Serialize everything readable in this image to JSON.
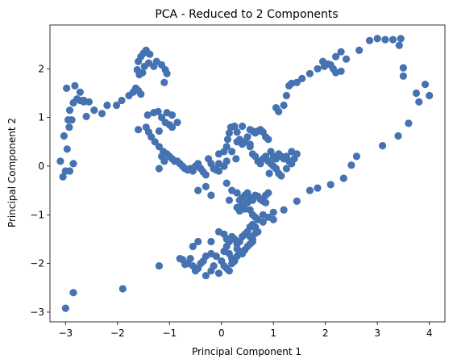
{
  "chart_data": {
    "type": "scatter",
    "title": "PCA - Reduced to 2 Components",
    "xlabel": "Principal Component 1",
    "ylabel": "Principal Component 2",
    "xlim": [
      -3.3,
      4.3
    ],
    "ylim": [
      -3.2,
      2.9
    ],
    "xticks": [
      -3,
      -2,
      -1,
      0,
      1,
      2,
      3,
      4
    ],
    "yticks": [
      -3,
      -2,
      -1,
      0,
      1,
      2
    ],
    "grid": false,
    "marker_color": "#4572b0",
    "points": [
      [
        -3.0,
        -2.92
      ],
      [
        -2.85,
        -2.6
      ],
      [
        -1.9,
        -2.52
      ],
      [
        -1.2,
        -2.05
      ],
      [
        -3.1,
        0.1
      ],
      [
        -3.05,
        -0.22
      ],
      [
        -3.0,
        -0.1
      ],
      [
        -2.92,
        -0.1
      ],
      [
        -2.85,
        0.05
      ],
      [
        -2.97,
        0.35
      ],
      [
        -3.03,
        0.62
      ],
      [
        -2.93,
        0.8
      ],
      [
        -2.88,
        0.95
      ],
      [
        -2.95,
        0.95
      ],
      [
        -2.92,
        1.15
      ],
      [
        -2.85,
        1.3
      ],
      [
        -2.78,
        1.38
      ],
      [
        -2.72,
        1.35
      ],
      [
        -2.65,
        1.32
      ],
      [
        -2.55,
        1.32
      ],
      [
        -2.6,
        1.02
      ],
      [
        -2.45,
        1.15
      ],
      [
        -2.3,
        1.08
      ],
      [
        -2.2,
        1.25
      ],
      [
        -2.02,
        1.25
      ],
      [
        -1.92,
        1.35
      ],
      [
        -1.78,
        1.45
      ],
      [
        -1.7,
        1.52
      ],
      [
        -1.65,
        1.6
      ],
      [
        -1.6,
        1.55
      ],
      [
        -1.55,
        1.48
      ],
      [
        -1.58,
        1.88
      ],
      [
        -1.62,
        1.98
      ],
      [
        -1.6,
        2.15
      ],
      [
        -1.55,
        2.25
      ],
      [
        -1.5,
        2.32
      ],
      [
        -1.45,
        2.38
      ],
      [
        -1.38,
        2.3
      ],
      [
        -1.4,
        2.12
      ],
      [
        -1.48,
        2.05
      ],
      [
        -1.52,
        1.92
      ],
      [
        -1.3,
        2.05
      ],
      [
        -1.25,
        2.15
      ],
      [
        -1.15,
        2.08
      ],
      [
        -1.08,
        1.98
      ],
      [
        -1.05,
        1.9
      ],
      [
        -1.1,
        1.72
      ],
      [
        -2.98,
        1.6
      ],
      [
        -2.82,
        1.65
      ],
      [
        -2.72,
        1.52
      ],
      [
        -2.65,
        1.35
      ],
      [
        -1.6,
        0.75
      ],
      [
        -1.45,
        0.8
      ],
      [
        -1.4,
        0.7
      ],
      [
        -1.35,
        0.6
      ],
      [
        -1.28,
        0.5
      ],
      [
        -1.2,
        0.4
      ],
      [
        -1.12,
        0.3
      ],
      [
        -1.05,
        0.25
      ],
      [
        -1.15,
        0.2
      ],
      [
        -1.1,
        0.1
      ],
      [
        -1.2,
        -0.05
      ],
      [
        -1.0,
        0.2
      ],
      [
        -0.95,
        0.15
      ],
      [
        -0.9,
        0.1
      ],
      [
        -0.85,
        0.1
      ],
      [
        -0.8,
        0.05
      ],
      [
        -0.75,
        0.0
      ],
      [
        -0.7,
        -0.05
      ],
      [
        -0.65,
        -0.08
      ],
      [
        -0.6,
        -0.05
      ],
      [
        -0.55,
        -0.1
      ],
      [
        -0.5,
        0.0
      ],
      [
        -0.45,
        0.05
      ],
      [
        -0.4,
        -0.05
      ],
      [
        -0.35,
        -0.12
      ],
      [
        -0.3,
        -0.18
      ],
      [
        -0.25,
        0.15
      ],
      [
        -0.2,
        0.05
      ],
      [
        -0.15,
        -0.05
      ],
      [
        -0.1,
        -0.08
      ],
      [
        -0.05,
        0.05
      ],
      [
        -0.45,
        -0.5
      ],
      [
        -0.3,
        -0.42
      ],
      [
        -0.2,
        -0.6
      ],
      [
        -1.42,
        1.05
      ],
      [
        -1.3,
        1.1
      ],
      [
        -1.22,
        1.12
      ],
      [
        -1.15,
        1.0
      ],
      [
        -1.08,
        0.9
      ],
      [
        -1.0,
        0.85
      ],
      [
        -0.95,
        0.8
      ],
      [
        -1.2,
        0.72
      ],
      [
        -1.05,
        1.1
      ],
      [
        -0.95,
        1.05
      ],
      [
        -0.85,
        0.9
      ],
      [
        -0.05,
        0.25
      ],
      [
        0.05,
        0.3
      ],
      [
        0.1,
        0.4
      ],
      [
        0.12,
        0.55
      ],
      [
        0.15,
        0.68
      ],
      [
        0.18,
        0.8
      ],
      [
        0.25,
        0.82
      ],
      [
        0.3,
        0.7
      ],
      [
        0.35,
        0.55
      ],
      [
        0.4,
        0.45
      ],
      [
        0.45,
        0.5
      ],
      [
        0.5,
        0.6
      ],
      [
        0.55,
        0.75
      ],
      [
        0.6,
        0.72
      ],
      [
        0.65,
        0.68
      ],
      [
        0.7,
        0.72
      ],
      [
        0.75,
        0.75
      ],
      [
        0.8,
        0.7
      ],
      [
        0.85,
        0.6
      ],
      [
        0.9,
        0.55
      ],
      [
        0.4,
        0.82
      ],
      [
        0.55,
        0.4
      ],
      [
        0.6,
        0.25
      ],
      [
        0.65,
        0.2
      ],
      [
        0.7,
        0.1
      ],
      [
        0.75,
        0.05
      ],
      [
        0.8,
        0.15
      ],
      [
        0.85,
        0.2
      ],
      [
        0.9,
        0.1
      ],
      [
        0.95,
        0.05
      ],
      [
        1.0,
        0.0
      ],
      [
        1.05,
        -0.05
      ],
      [
        1.1,
        -0.15
      ],
      [
        1.15,
        -0.2
      ],
      [
        1.0,
        0.2
      ],
      [
        1.05,
        0.15
      ],
      [
        1.1,
        0.25
      ],
      [
        1.15,
        0.2
      ],
      [
        1.2,
        0.15
      ],
      [
        1.25,
        0.2
      ],
      [
        1.3,
        0.1
      ],
      [
        1.35,
        0.05
      ],
      [
        1.4,
        0.15
      ],
      [
        1.45,
        0.25
      ],
      [
        1.35,
        0.3
      ],
      [
        1.25,
        -0.05
      ],
      [
        0.55,
        0.45
      ],
      [
        0.3,
        0.5
      ],
      [
        0.2,
        0.3
      ],
      [
        0.28,
        0.15
      ],
      [
        0.05,
        0.0
      ],
      [
        0.1,
        0.1
      ],
      [
        -0.05,
        -0.1
      ],
      [
        0.95,
        0.3
      ],
      [
        0.92,
        -0.15
      ],
      [
        0.2,
        -0.5
      ],
      [
        0.3,
        -0.55
      ],
      [
        0.35,
        -0.7
      ],
      [
        0.4,
        -0.65
      ],
      [
        0.45,
        -0.6
      ],
      [
        0.5,
        -0.55
      ],
      [
        0.55,
        -0.65
      ],
      [
        0.6,
        -0.7
      ],
      [
        0.65,
        -0.6
      ],
      [
        0.7,
        -0.62
      ],
      [
        0.75,
        -0.68
      ],
      [
        0.8,
        -0.72
      ],
      [
        0.85,
        -0.6
      ],
      [
        0.9,
        -0.55
      ],
      [
        0.3,
        -0.85
      ],
      [
        0.35,
        -0.92
      ],
      [
        0.4,
        -0.8
      ],
      [
        0.45,
        -0.88
      ],
      [
        0.5,
        -0.75
      ],
      [
        0.55,
        -0.9
      ],
      [
        0.6,
        -1.0
      ],
      [
        0.65,
        -1.05
      ],
      [
        0.7,
        -1.1
      ],
      [
        0.8,
        -1.0
      ],
      [
        0.9,
        -1.05
      ],
      [
        1.0,
        -0.95
      ],
      [
        0.85,
        -0.75
      ],
      [
        0.1,
        -0.35
      ],
      [
        0.15,
        -0.7
      ],
      [
        -0.05,
        -1.35
      ],
      [
        0.05,
        -1.4
      ],
      [
        0.1,
        -1.5
      ],
      [
        0.15,
        -1.55
      ],
      [
        0.2,
        -1.45
      ],
      [
        0.25,
        -1.5
      ],
      [
        0.3,
        -1.6
      ],
      [
        0.35,
        -1.55
      ],
      [
        0.4,
        -1.45
      ],
      [
        0.45,
        -1.4
      ],
      [
        0.5,
        -1.35
      ],
      [
        0.55,
        -1.45
      ],
      [
        0.6,
        -1.5
      ],
      [
        0.65,
        -1.38
      ],
      [
        0.3,
        -1.7
      ],
      [
        0.35,
        -1.75
      ],
      [
        0.4,
        -1.8
      ],
      [
        0.45,
        -1.72
      ],
      [
        0.5,
        -1.65
      ],
      [
        0.55,
        -1.6
      ],
      [
        0.6,
        -1.55
      ],
      [
        0.15,
        -1.8
      ],
      [
        0.2,
        -1.9
      ],
      [
        0.25,
        -1.95
      ],
      [
        0.3,
        -1.85
      ],
      [
        0.0,
        -1.95
      ],
      [
        0.05,
        -2.05
      ],
      [
        0.1,
        -2.1
      ],
      [
        0.15,
        -2.15
      ],
      [
        0.2,
        -2.0
      ],
      [
        -0.1,
        -1.85
      ],
      [
        -0.2,
        -1.8
      ],
      [
        -0.3,
        -1.85
      ],
      [
        -0.35,
        -1.95
      ],
      [
        -0.4,
        -2.0
      ],
      [
        -0.45,
        -2.1
      ],
      [
        -0.5,
        -2.15
      ],
      [
        -0.55,
        -2.05
      ],
      [
        -0.6,
        -1.9
      ],
      [
        -0.65,
        -2.0
      ],
      [
        -0.7,
        -2.02
      ],
      [
        -0.75,
        -1.92
      ],
      [
        -0.8,
        -1.9
      ],
      [
        -0.3,
        -2.25
      ],
      [
        -0.2,
        -2.15
      ],
      [
        -0.15,
        -2.05
      ],
      [
        -0.05,
        -2.2
      ],
      [
        -0.55,
        -1.65
      ],
      [
        -0.45,
        -1.55
      ],
      [
        -0.2,
        -1.55
      ],
      [
        0.1,
        -1.65
      ],
      [
        0.05,
        -1.75
      ],
      [
        0.55,
        -1.25
      ],
      [
        0.6,
        -1.2
      ],
      [
        0.7,
        -1.35
      ],
      [
        0.8,
        -1.15
      ],
      [
        0.65,
        -1.25
      ],
      [
        1.05,
        1.2
      ],
      [
        1.1,
        1.12
      ],
      [
        1.2,
        1.25
      ],
      [
        1.25,
        1.45
      ],
      [
        1.3,
        1.65
      ],
      [
        1.35,
        1.7
      ],
      [
        1.45,
        1.72
      ],
      [
        1.55,
        1.8
      ],
      [
        1.7,
        1.9
      ],
      [
        1.85,
        2.0
      ],
      [
        1.95,
        2.15
      ],
      [
        2.05,
        2.1
      ],
      [
        2.1,
        2.08
      ],
      [
        1.98,
        2.05
      ],
      [
        2.15,
        2.0
      ],
      [
        2.2,
        1.92
      ],
      [
        2.3,
        1.95
      ],
      [
        2.2,
        2.25
      ],
      [
        2.3,
        2.35
      ],
      [
        2.4,
        2.2
      ],
      [
        2.65,
        2.38
      ],
      [
        2.85,
        2.58
      ],
      [
        3.0,
        2.62
      ],
      [
        3.15,
        2.6
      ],
      [
        3.3,
        2.6
      ],
      [
        3.45,
        2.62
      ],
      [
        3.42,
        2.48
      ],
      [
        3.5,
        2.02
      ],
      [
        3.5,
        1.85
      ],
      [
        3.75,
        1.5
      ],
      [
        3.92,
        1.68
      ],
      [
        4.0,
        1.45
      ],
      [
        3.8,
        1.32
      ],
      [
        1.45,
        -0.72
      ],
      [
        1.7,
        -0.5
      ],
      [
        1.85,
        -0.45
      ],
      [
        2.1,
        -0.38
      ],
      [
        2.35,
        -0.25
      ],
      [
        2.5,
        0.02
      ],
      [
        2.6,
        0.2
      ],
      [
        3.1,
        0.42
      ],
      [
        3.4,
        0.62
      ],
      [
        3.6,
        0.88
      ],
      [
        1.2,
        -0.9
      ],
      [
        1.0,
        -1.1
      ]
    ]
  }
}
